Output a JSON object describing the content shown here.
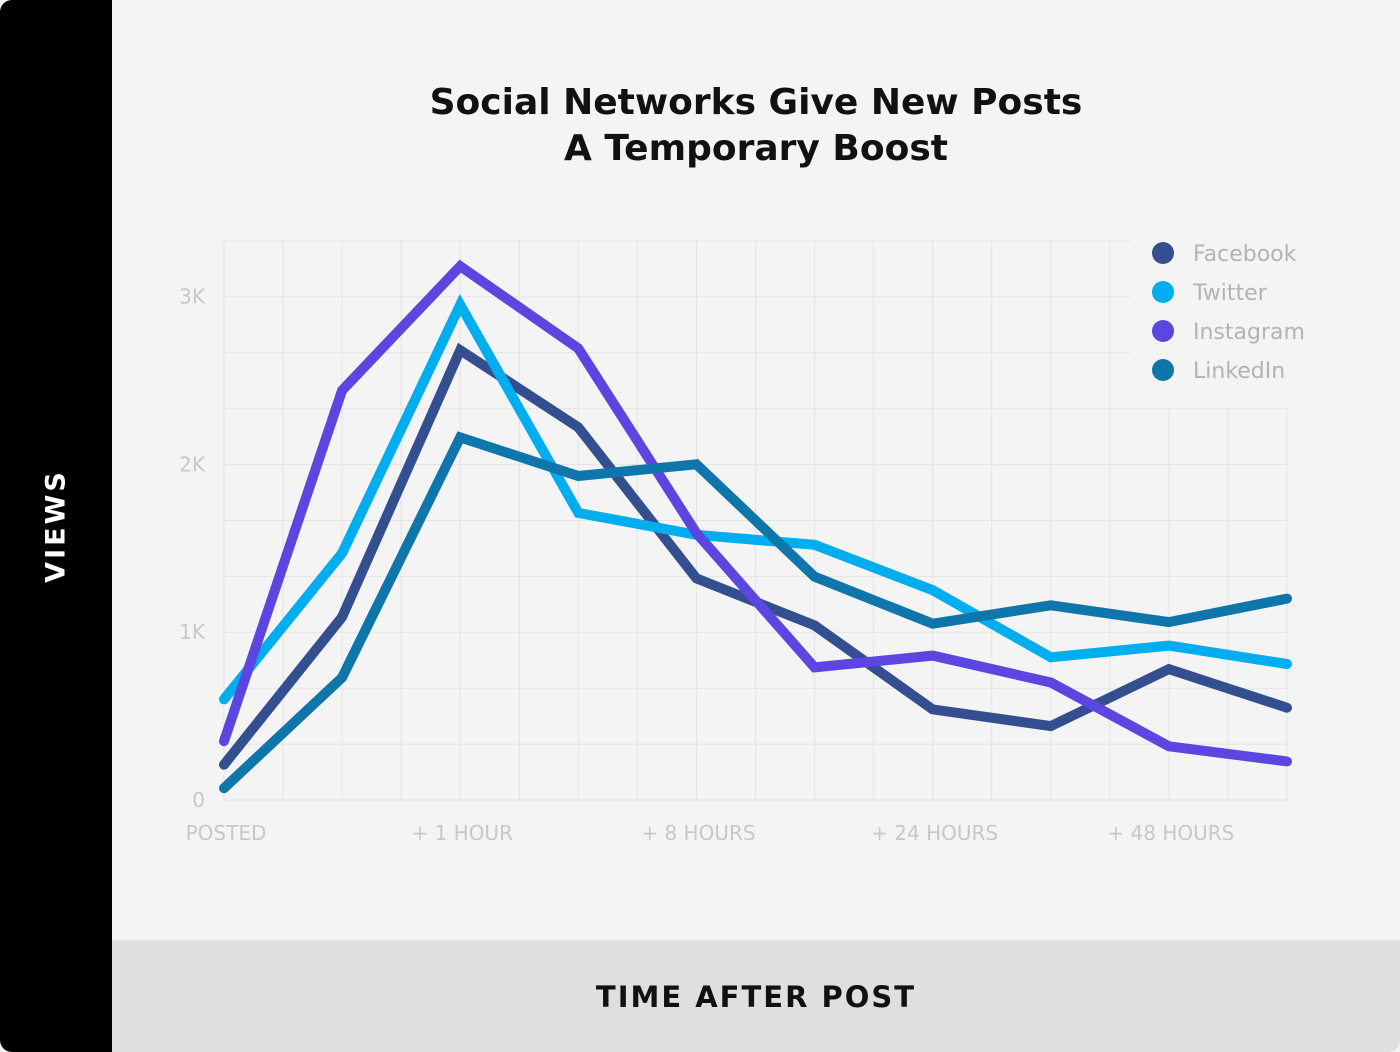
{
  "chart_data": {
    "type": "line",
    "title_lines": [
      "Social Networks Give New Posts",
      "A Temporary Boost"
    ],
    "xlabel": "TIME AFTER POST",
    "ylabel": "VIEWS",
    "ylim": [
      0,
      3330
    ],
    "y_ticks": [
      {
        "value": 0,
        "label": "0"
      },
      {
        "value": 1000,
        "label": "1K"
      },
      {
        "value": 2000,
        "label": "2K"
      },
      {
        "value": 3000,
        "label": "3K"
      }
    ],
    "x_labels": [
      {
        "index": 0,
        "label": "POSTED"
      },
      {
        "index": 4,
        "label": "+ 1 HOUR"
      },
      {
        "index": 8,
        "label": "+ 8 HOURS"
      },
      {
        "index": 12,
        "label": "+ 24 HOURS"
      },
      {
        "index": 16,
        "label": "+ 48 HOURS"
      }
    ],
    "x_points": [
      0,
      2,
      4,
      6,
      8,
      10,
      12,
      14,
      16,
      18
    ],
    "x_max": 18,
    "grid": true,
    "legend_position": "top-right",
    "series": [
      {
        "name": "Facebook",
        "color": "#344f8f",
        "values": [
          210,
          1090,
          2680,
          2220,
          1320,
          1040,
          540,
          440,
          780,
          550
        ]
      },
      {
        "name": "Twitter",
        "color": "#00adef",
        "values": [
          600,
          1470,
          2950,
          1710,
          1580,
          1520,
          1250,
          850,
          920,
          810
        ]
      },
      {
        "name": "Instagram",
        "color": "#5b47e0",
        "values": [
          350,
          2440,
          3180,
          2690,
          1590,
          790,
          860,
          700,
          320,
          230
        ]
      },
      {
        "name": "LinkedIn",
        "color": "#0e76aa",
        "values": [
          70,
          730,
          2160,
          1930,
          2000,
          1330,
          1050,
          1160,
          1060,
          1200
        ]
      }
    ]
  }
}
